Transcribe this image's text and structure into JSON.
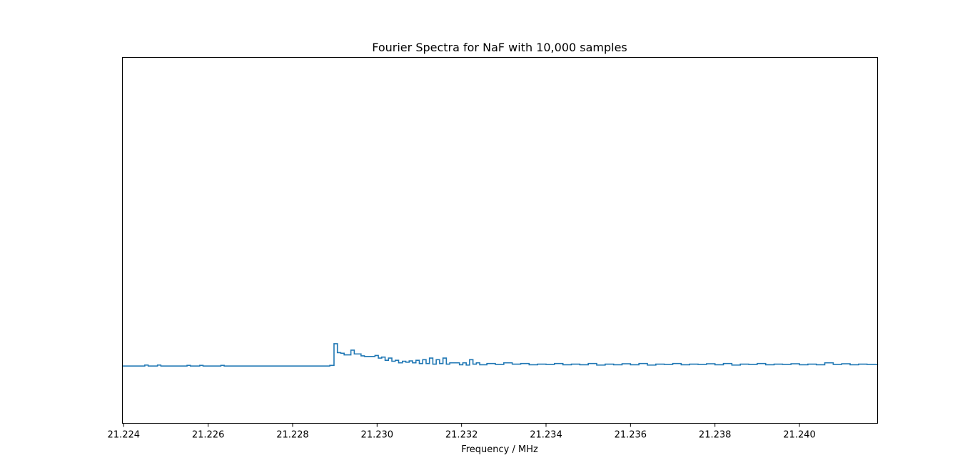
{
  "chart_data": {
    "type": "line",
    "drawstyle": "steps",
    "title": "Fourier Spectra for NaF with 10,000 samples",
    "xlabel": "Frequency / MHz",
    "ylabel": "",
    "xlim": [
      21.22397,
      21.24185
    ],
    "ylim": [
      -0.15,
      1.0
    ],
    "x_tick_labels": [
      "21.224",
      "21.226",
      "21.228",
      "21.230",
      "21.232",
      "21.234",
      "21.236",
      "21.238",
      "21.240"
    ],
    "y_ticks_visible": false,
    "grid": false,
    "line_color": "#1f77b4",
    "series": [
      {
        "x": [
          21.22397,
          21.2245,
          21.22458,
          21.2248,
          21.22488,
          21.2255,
          21.22558,
          21.2258,
          21.22588,
          21.2263,
          21.22638,
          21.2288,
          21.22888,
          21.22898,
          21.22906,
          21.22914,
          21.22922,
          21.22938,
          21.22946,
          21.22962,
          21.2297,
          21.22995,
          21.23003,
          21.23011,
          21.23019,
          21.23027,
          21.23035,
          21.23043,
          21.23051,
          21.2306,
          21.23068,
          21.23076,
          21.23084,
          21.23092,
          21.231,
          21.23108,
          21.23116,
          21.23124,
          21.23132,
          21.2314,
          21.23148,
          21.23156,
          21.23164,
          21.23172,
          21.23195,
          21.23203,
          21.23211,
          21.23219,
          21.23227,
          21.23235,
          21.23243,
          21.2326,
          21.2328,
          21.233,
          21.2332,
          21.2334,
          21.2336,
          21.2338,
          21.234,
          21.2342,
          21.2344,
          21.2346,
          21.2348,
          21.235,
          21.2352,
          21.2354,
          21.2356,
          21.2358,
          21.236,
          21.2362,
          21.2364,
          21.2366,
          21.2368,
          21.237,
          21.2372,
          21.2374,
          21.2376,
          21.2378,
          21.238,
          21.2382,
          21.2384,
          21.2386,
          21.2388,
          21.239,
          21.2392,
          21.2394,
          21.2396,
          21.2398,
          21.24,
          21.2402,
          21.2404,
          21.2406,
          21.2408,
          21.241,
          21.2412,
          21.2414,
          21.2416,
          21.24185
        ],
        "y": [
          0.03,
          0.033,
          0.03,
          0.033,
          0.03,
          0.032,
          0.03,
          0.032,
          0.03,
          0.032,
          0.03,
          0.03,
          0.032,
          0.1,
          0.072,
          0.07,
          0.065,
          0.08,
          0.068,
          0.062,
          0.06,
          0.063,
          0.055,
          0.058,
          0.048,
          0.055,
          0.045,
          0.048,
          0.04,
          0.045,
          0.042,
          0.046,
          0.04,
          0.048,
          0.038,
          0.05,
          0.038,
          0.055,
          0.036,
          0.05,
          0.038,
          0.055,
          0.036,
          0.04,
          0.034,
          0.04,
          0.033,
          0.05,
          0.036,
          0.04,
          0.034,
          0.038,
          0.035,
          0.04,
          0.036,
          0.038,
          0.034,
          0.036,
          0.035,
          0.038,
          0.034,
          0.036,
          0.034,
          0.038,
          0.033,
          0.036,
          0.034,
          0.037,
          0.034,
          0.038,
          0.033,
          0.036,
          0.035,
          0.038,
          0.034,
          0.036,
          0.035,
          0.037,
          0.034,
          0.038,
          0.033,
          0.036,
          0.035,
          0.038,
          0.034,
          0.036,
          0.035,
          0.037,
          0.034,
          0.036,
          0.034,
          0.04,
          0.035,
          0.037,
          0.034,
          0.036,
          0.035,
          0.036
        ]
      }
    ]
  }
}
